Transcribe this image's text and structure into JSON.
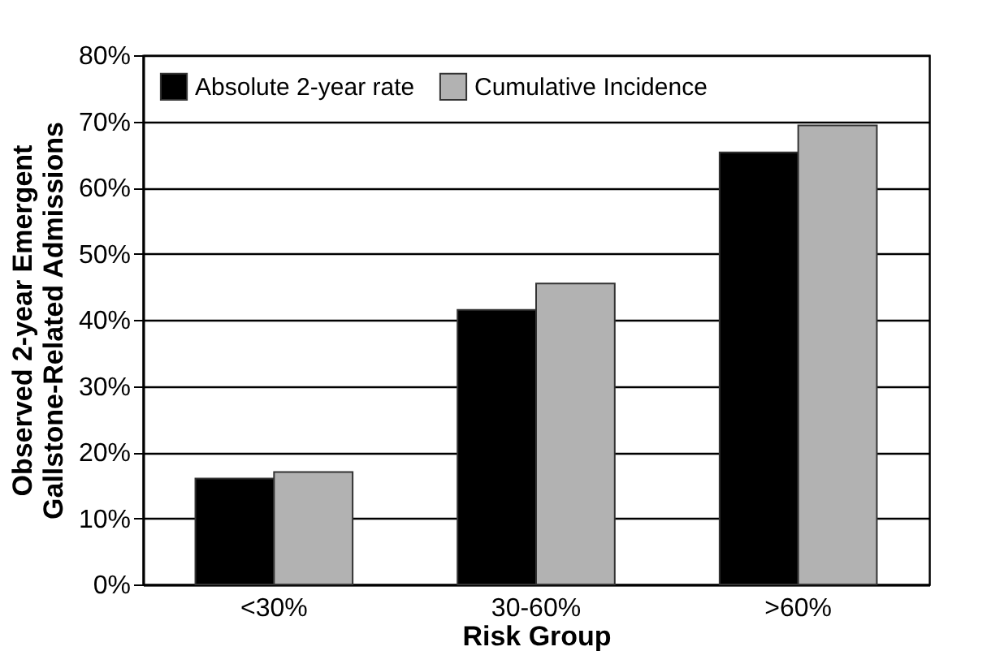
{
  "chart_data": {
    "type": "bar",
    "xlabel": "Risk Group",
    "ylabel": "Observed 2-year Emergent\nGallstone-Related Admissions",
    "categories": [
      "<30%",
      "30-60%",
      ">60%"
    ],
    "series": [
      {
        "name": "Absolute 2-year rate",
        "color": "#000000",
        "values": [
          16,
          41.5,
          65.3
        ]
      },
      {
        "name": "Cumulative Incidence",
        "color": "#b2b2b2",
        "values": [
          17,
          45.5,
          69.4
        ]
      }
    ],
    "ylim": [
      0,
      80
    ],
    "yticks": [
      {
        "value": 0,
        "label": "0%"
      },
      {
        "value": 10,
        "label": "10%"
      },
      {
        "value": 20,
        "label": "20%"
      },
      {
        "value": 30,
        "label": "30%"
      },
      {
        "value": 40,
        "label": "40%"
      },
      {
        "value": 50,
        "label": "50%"
      },
      {
        "value": 60,
        "label": "60%"
      },
      {
        "value": 70,
        "label": "70%"
      },
      {
        "value": 80,
        "label": "80%"
      }
    ],
    "grid": "y",
    "legend": "top left"
  }
}
